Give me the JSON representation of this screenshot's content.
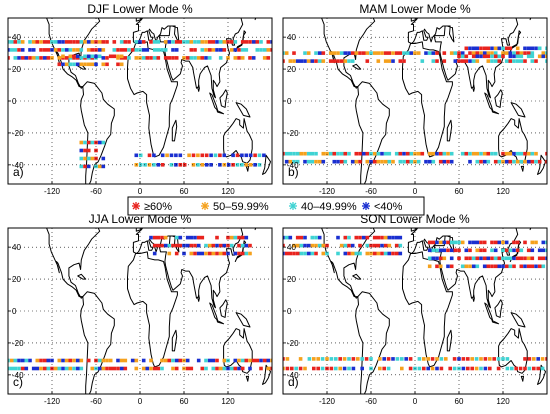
{
  "figure": {
    "panels": [
      {
        "title": "DJF Lower Mode %",
        "label": "a)"
      },
      {
        "title": "MAM Lower Mode %",
        "label": "b)"
      },
      {
        "title": "JJA Lower Mode %",
        "label": "c)"
      },
      {
        "title": "SON Lower Mode %",
        "label": "d)"
      }
    ],
    "x_ticks": [
      "-120",
      "-60",
      "0",
      "60",
      "120"
    ],
    "y_ticks": [
      "40",
      "20",
      "0",
      "-20",
      "-40"
    ],
    "legend": [
      {
        "label": "≥60%",
        "color": "#e8231e"
      },
      {
        "label": "50–59.99%",
        "color": "#f5a11d"
      },
      {
        "label": "40–49.99%",
        "color": "#3fd3d3"
      },
      {
        "label": "<40%",
        "color": "#1a2fd0"
      }
    ]
  }
}
